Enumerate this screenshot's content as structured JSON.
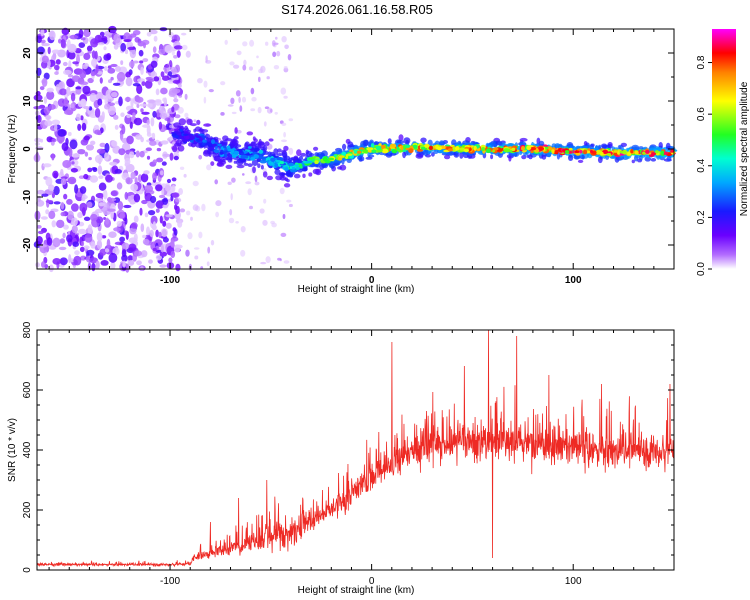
{
  "figure_title": "S174.2026.061.16.58.R05",
  "chart_data": [
    {
      "type": "heatmap",
      "title": "S174.2026.061.16.58.R05",
      "xlabel": "Height of straight line (km)",
      "ylabel": "Frequency (Hz)",
      "xlim": [
        -166,
        150
      ],
      "ylim": [
        -25,
        25
      ],
      "xticks": [
        -100,
        0,
        100
      ],
      "yticks": [
        -20,
        -10,
        0,
        10,
        20
      ],
      "colorbar": {
        "label": "Normalized spectral amplitude",
        "range": [
          0,
          0.93
        ],
        "ticks": [
          0.0,
          0.2,
          0.4,
          0.6,
          0.8
        ],
        "tick_labels": [
          "0.0",
          "0.2",
          "0.4",
          "0.6",
          "0.8"
        ],
        "colormap": "rainbow (white-violet-blue-cyan-green-yellow-red-magenta)"
      },
      "signal_track": {
        "description": "Narrow high-amplitude band tracking near 0 Hz; diffuse low-amplitude noise for heights below about -95 km",
        "x": [
          -95,
          -85,
          -75,
          -65,
          -55,
          -45,
          -40,
          -30,
          -20,
          -10,
          0,
          20,
          40,
          60,
          80,
          100,
          120,
          150
        ],
        "center_hz": [
          3,
          2,
          0,
          -1,
          -1.5,
          -3,
          -4,
          -2.5,
          -2,
          -1,
          0,
          0.3,
          0.2,
          0,
          0,
          -0.5,
          -0.8,
          -0.8
        ],
        "peak_amplitude": [
          0.25,
          0.3,
          0.35,
          0.38,
          0.4,
          0.45,
          0.5,
          0.6,
          0.7,
          0.75,
          0.8,
          0.85,
          0.85,
          0.85,
          0.9,
          0.9,
          0.9,
          0.9
        ]
      }
    },
    {
      "type": "line",
      "title": "",
      "xlabel": "Height of straight line (km)",
      "ylabel": "SNR (10 * v/v)",
      "xlim": [
        -166,
        150
      ],
      "ylim": [
        0,
        800
      ],
      "xticks": [
        -100,
        0,
        100
      ],
      "yticks": [
        0,
        200,
        400,
        600,
        800
      ],
      "color": "#ee2a24",
      "series": [
        {
          "name": "SNR",
          "x": [
            -166,
            -140,
            -120,
            -100,
            -90,
            -88,
            -80,
            -70,
            -60,
            -50,
            -40,
            -30,
            -20,
            -10,
            0,
            10,
            20,
            30,
            40,
            50,
            60,
            70,
            80,
            90,
            100,
            110,
            120,
            130,
            140,
            150
          ],
          "mean": [
            18,
            18,
            18,
            18,
            20,
            45,
            55,
            70,
            90,
            110,
            125,
            160,
            200,
            250,
            310,
            350,
            390,
            410,
            420,
            420,
            425,
            430,
            420,
            410,
            410,
            400,
            395,
            400,
            395,
            400
          ],
          "spread": [
            8,
            8,
            8,
            8,
            10,
            25,
            30,
            50,
            70,
            90,
            100,
            80,
            80,
            90,
            100,
            110,
            110,
            120,
            120,
            130,
            130,
            130,
            130,
            120,
            120,
            120,
            120,
            110,
            110,
            110
          ],
          "spikes": [
            {
              "x": -80,
              "value": 160
            },
            {
              "x": -66,
              "value": 240
            },
            {
              "x": -52,
              "value": 300
            },
            {
              "x": -31,
              "value": 200
            },
            {
              "x": 10,
              "value": 760
            },
            {
              "x": 46,
              "value": 680
            },
            {
              "x": 58,
              "value": 800
            },
            {
              "x": 60,
              "value": 40
            },
            {
              "x": 72,
              "value": 780
            },
            {
              "x": 88,
              "value": 650
            },
            {
              "x": 114,
              "value": 620
            },
            {
              "x": 148,
              "value": 620
            }
          ]
        }
      ]
    }
  ]
}
